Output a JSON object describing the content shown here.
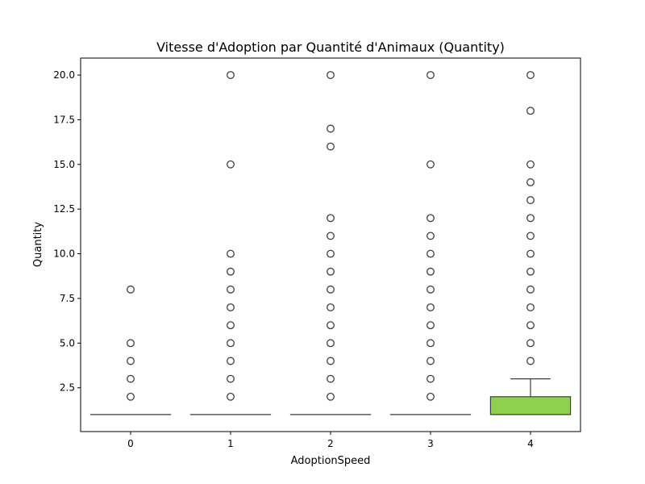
{
  "chart_data": {
    "type": "box",
    "title": "Vitesse d'Adoption par Quantité d'Animaux (Quantity)",
    "xlabel": "AdoptionSpeed",
    "ylabel": "Quantity",
    "categories": [
      "0",
      "1",
      "2",
      "3",
      "4"
    ],
    "ylim": [
      0.05,
      20.95
    ],
    "yticks": [
      2.5,
      5.0,
      7.5,
      10.0,
      12.5,
      15.0,
      17.5,
      20.0
    ],
    "ytick_labels": [
      "2.5",
      "5.0",
      "7.5",
      "10.0",
      "12.5",
      "15.0",
      "17.5",
      "20.0"
    ],
    "boxes": [
      {
        "category": "0",
        "q1": 1,
        "median": 1,
        "q3": 1,
        "whisker_low": 1,
        "whisker_high": 1,
        "color": "#1f77b4",
        "outliers": [
          2,
          3,
          4,
          5,
          8
        ]
      },
      {
        "category": "1",
        "q1": 1,
        "median": 1,
        "q3": 1,
        "whisker_low": 1,
        "whisker_high": 1,
        "color": "#ff7f0e",
        "outliers": [
          2,
          3,
          4,
          5,
          6,
          7,
          8,
          9,
          10,
          15,
          20
        ]
      },
      {
        "category": "2",
        "q1": 1,
        "median": 1,
        "q3": 1,
        "whisker_low": 1,
        "whisker_high": 1,
        "color": "#2ca02c",
        "outliers": [
          2,
          3,
          4,
          5,
          6,
          7,
          8,
          9,
          10,
          11,
          12,
          16,
          17,
          20
        ]
      },
      {
        "category": "3",
        "q1": 1,
        "median": 1,
        "q3": 1,
        "whisker_low": 1,
        "whisker_high": 1,
        "color": "#d62728",
        "outliers": [
          2,
          3,
          4,
          5,
          6,
          7,
          8,
          9,
          10,
          11,
          12,
          15,
          20
        ]
      },
      {
        "category": "4",
        "q1": 1,
        "median": 1,
        "q3": 2,
        "whisker_low": 1,
        "whisker_high": 3,
        "color": "#8fd14f",
        "outliers": [
          4,
          5,
          6,
          7,
          8,
          9,
          10,
          11,
          12,
          13,
          14,
          15,
          18,
          20
        ]
      }
    ],
    "grid": false,
    "legend": "none"
  }
}
